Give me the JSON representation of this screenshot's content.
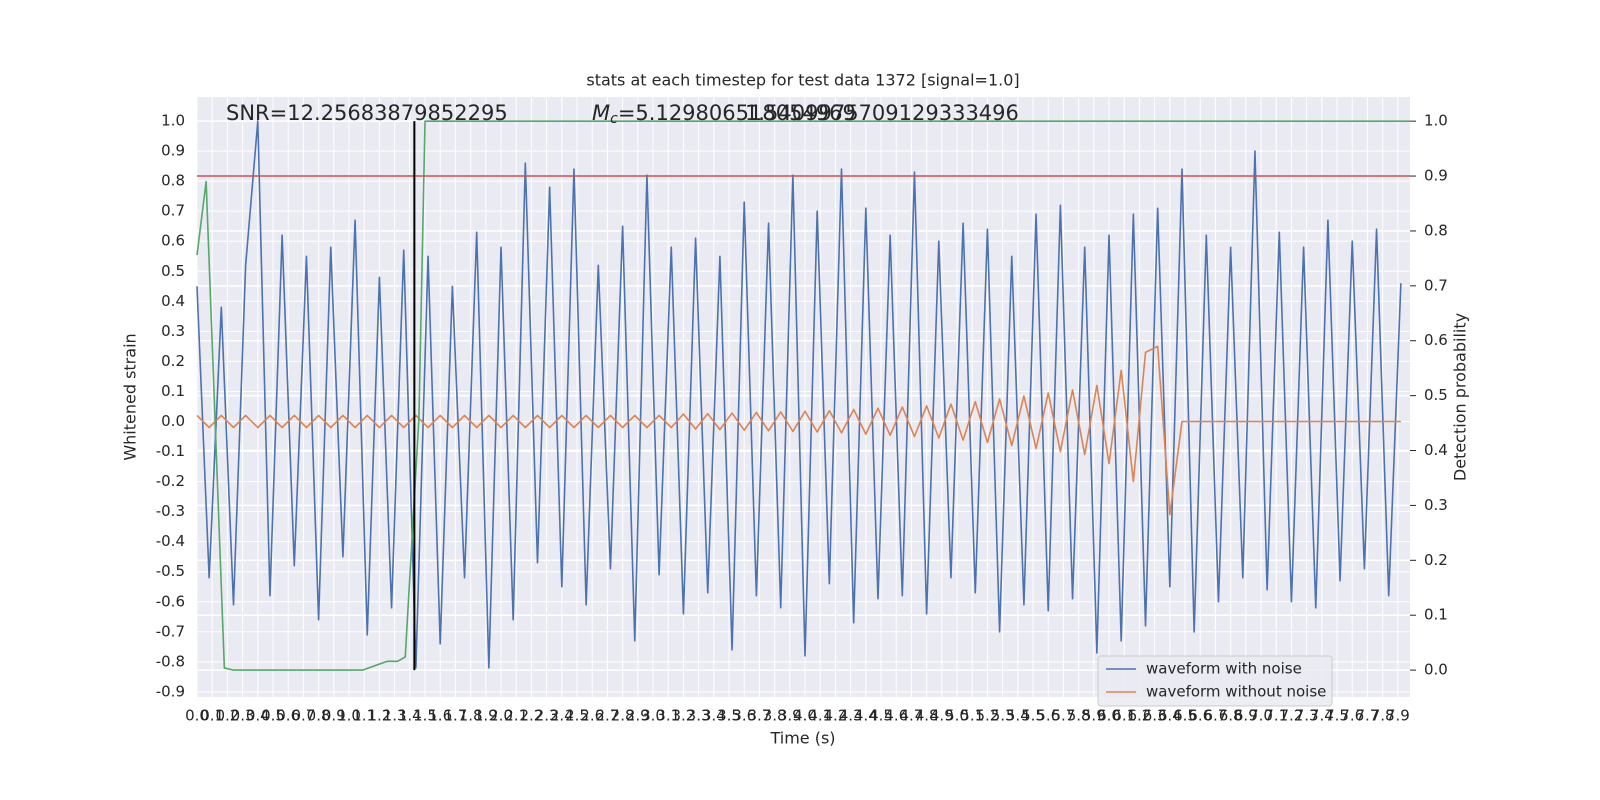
{
  "chart_data": {
    "type": "line",
    "title": "stats at each timestep for test data 1372 [signal=1.0]",
    "x_label": "Time (s)",
    "y_label": "Whitened strain",
    "y2_label": "Detection probability",
    "annotations": [
      {
        "text": "SNR=12.25683879852295"
      },
      {
        "symbol": "M",
        "subscript": "c",
        "text": "=5.129806518054969"
      },
      {
        "text": "1.5409975709129333496"
      }
    ],
    "x": [
      0,
      0.08,
      0.16,
      0.24,
      0.32,
      0.4,
      0.48,
      0.56,
      0.64,
      0.72,
      0.8,
      0.88,
      0.96,
      1.04,
      1.12,
      1.2,
      1.28,
      1.36,
      1.44,
      1.52,
      1.6,
      1.68,
      1.76,
      1.84,
      1.92,
      2,
      2.08,
      2.16,
      2.24,
      2.32,
      2.4,
      2.48,
      2.56,
      2.64,
      2.72,
      2.8,
      2.88,
      2.96,
      3.04,
      3.12,
      3.2,
      3.28,
      3.36,
      3.44,
      3.52,
      3.6,
      3.68,
      3.76,
      3.84,
      3.92,
      4,
      4.08,
      4.16,
      4.24,
      4.32,
      4.4,
      4.48,
      4.56,
      4.64,
      4.72,
      4.8,
      4.88,
      4.96,
      5.04,
      5.12,
      5.2,
      5.28,
      5.36,
      5.44,
      5.52,
      5.6,
      5.68,
      5.76,
      5.84,
      5.92,
      6,
      6.08,
      6.16,
      6.24,
      6.32,
      6.4,
      6.48,
      6.56,
      6.64,
      6.72,
      6.8,
      6.88,
      6.96,
      7.04,
      7.12,
      7.2,
      7.28,
      7.36,
      7.44,
      7.52,
      7.6,
      7.68,
      7.76,
      7.84,
      7.92
    ],
    "series": [
      {
        "name": "waveform with noise",
        "color": "#4c72b0",
        "values": [
          0.45,
          -0.52,
          0.38,
          -0.61,
          0.52,
          1.0,
          -0.58,
          0.62,
          -0.48,
          0.55,
          -0.66,
          0.58,
          -0.45,
          0.67,
          -0.71,
          0.48,
          -0.62,
          0.57,
          -0.82,
          0.55,
          -0.74,
          0.45,
          -0.52,
          0.63,
          -0.82,
          0.58,
          -0.66,
          0.86,
          -0.47,
          0.78,
          -0.55,
          0.84,
          -0.61,
          0.52,
          -0.49,
          0.65,
          -0.73,
          0.82,
          -0.51,
          0.58,
          -0.64,
          0.61,
          -0.57,
          0.55,
          -0.76,
          0.73,
          -0.58,
          0.66,
          -0.62,
          0.82,
          -0.78,
          0.7,
          -0.54,
          0.84,
          -0.67,
          0.71,
          -0.59,
          0.62,
          -0.58,
          0.83,
          -0.64,
          0.6,
          -0.52,
          0.66,
          -0.57,
          0.64,
          -0.7,
          0.55,
          -0.61,
          0.69,
          -0.63,
          0.72,
          -0.59,
          0.58,
          -0.77,
          0.62,
          -0.73,
          0.69,
          -0.68,
          0.71,
          -0.55,
          0.84,
          -0.7,
          0.62,
          -0.6,
          0.58,
          -0.52,
          0.9,
          -0.56,
          0.63,
          -0.6,
          0.58,
          -0.62,
          0.67,
          -0.53,
          0.6,
          -0.49,
          0.64,
          -0.58,
          0.46
        ]
      },
      {
        "name": "waveform without noise",
        "color": "#dd8452",
        "values": [
          0.02,
          -0.02,
          0.02,
          -0.02,
          0.02,
          -0.02,
          0.02,
          -0.02,
          0.02,
          -0.02,
          0.02,
          -0.02,
          0.02,
          -0.02,
          0.02,
          -0.02,
          0.02,
          -0.02,
          0.02,
          -0.02,
          0.02,
          -0.02,
          0.02,
          -0.02,
          0.02,
          -0.02,
          0.02,
          -0.02,
          0.02,
          -0.02,
          0.02,
          -0.02,
          0.02,
          -0.02,
          0.02,
          -0.02,
          0.02,
          -0.02,
          0.02,
          -0.02,
          0.025,
          -0.025,
          0.026,
          -0.027,
          0.028,
          -0.029,
          0.03,
          -0.031,
          0.032,
          -0.033,
          0.034,
          -0.035,
          0.036,
          -0.038,
          0.04,
          -0.042,
          0.044,
          -0.046,
          0.048,
          -0.05,
          0.052,
          -0.055,
          0.058,
          -0.062,
          0.066,
          -0.07,
          0.075,
          -0.08,
          0.085,
          -0.09,
          0.095,
          -0.1,
          0.105,
          -0.11,
          0.12,
          -0.14,
          0.17,
          -0.2,
          0.23,
          0.25,
          -0.31,
          0,
          0,
          0,
          0,
          0,
          0,
          0,
          0,
          0,
          0,
          0,
          0,
          0,
          0,
          0,
          0,
          0,
          0,
          0
        ]
      },
      {
        "name": "detection probability",
        "color": "#55a868",
        "axis": "y2",
        "x": [
          0,
          0.06,
          0.18,
          0.24,
          1.09,
          1.25,
          1.32,
          1.37,
          1.46,
          1.5,
          7.98
        ],
        "values": [
          0.756,
          0.89,
          0.004,
          0,
          0,
          0.016,
          0.016,
          0.024,
          0.46,
          1.0,
          1.0
        ]
      }
    ],
    "threshold": 0.9,
    "threshold_color": "#c44e52",
    "marker_x": 1.43,
    "marker_color": "#000000",
    "xlim": [
      0,
      7.98
    ],
    "ylim": [
      -0.917,
      1.08
    ],
    "y2lim": [
      -0.049,
      1.044
    ],
    "xticks": [
      {
        "value": 0,
        "label": "0.0"
      },
      0.1,
      0.2,
      0.3,
      0.4,
      0.5,
      0.6,
      0.7,
      0.8,
      0.9,
      {
        "value": 1,
        "label": "1.0"
      },
      1.1,
      1.2,
      1.3,
      1.4,
      1.5,
      1.6,
      1.7,
      1.8,
      1.9,
      {
        "value": 2,
        "label": "2.0"
      },
      2.1,
      2.2,
      2.3,
      2.4,
      2.5,
      2.6,
      2.7,
      2.8,
      2.9,
      {
        "value": 3,
        "label": "3.0"
      },
      3.1,
      3.2,
      3.3,
      3.4,
      3.5,
      3.6,
      3.7,
      3.8,
      3.9,
      {
        "value": 4,
        "label": "4.0"
      },
      4.1,
      4.2,
      4.3,
      4.4,
      4.5,
      4.6,
      4.7,
      4.8,
      4.9,
      {
        "value": 5,
        "label": "5.0"
      },
      5.1,
      5.2,
      5.3,
      5.4,
      5.5,
      5.6,
      5.7,
      5.8,
      5.9,
      {
        "value": 6,
        "label": "6.0"
      },
      6.1,
      6.2,
      6.3,
      6.4,
      6.5,
      6.6,
      6.7,
      6.8,
      6.9,
      {
        "value": 7,
        "label": "7.0"
      },
      7.1,
      7.2,
      7.3,
      7.4,
      7.5,
      7.6,
      7.7,
      7.8,
      7.9
    ],
    "yticks": [
      {
        "value": 1,
        "label": "1.0"
      },
      0.9,
      0.8,
      0.7,
      0.6,
      0.5,
      0.4,
      0.3,
      0.2,
      0.1,
      {
        "value": 0,
        "label": "0.0"
      },
      -0.1,
      -0.2,
      -0.3,
      -0.4,
      -0.5,
      -0.6,
      -0.7,
      -0.8,
      -0.9
    ],
    "y2ticks": [
      {
        "value": 0,
        "label": "0.0"
      },
      0.1,
      0.2,
      0.3,
      0.4,
      0.5,
      0.6,
      0.7,
      0.8,
      0.9,
      {
        "value": 1,
        "label": "1.0"
      }
    ],
    "grid": true,
    "legend": "lower right"
  }
}
